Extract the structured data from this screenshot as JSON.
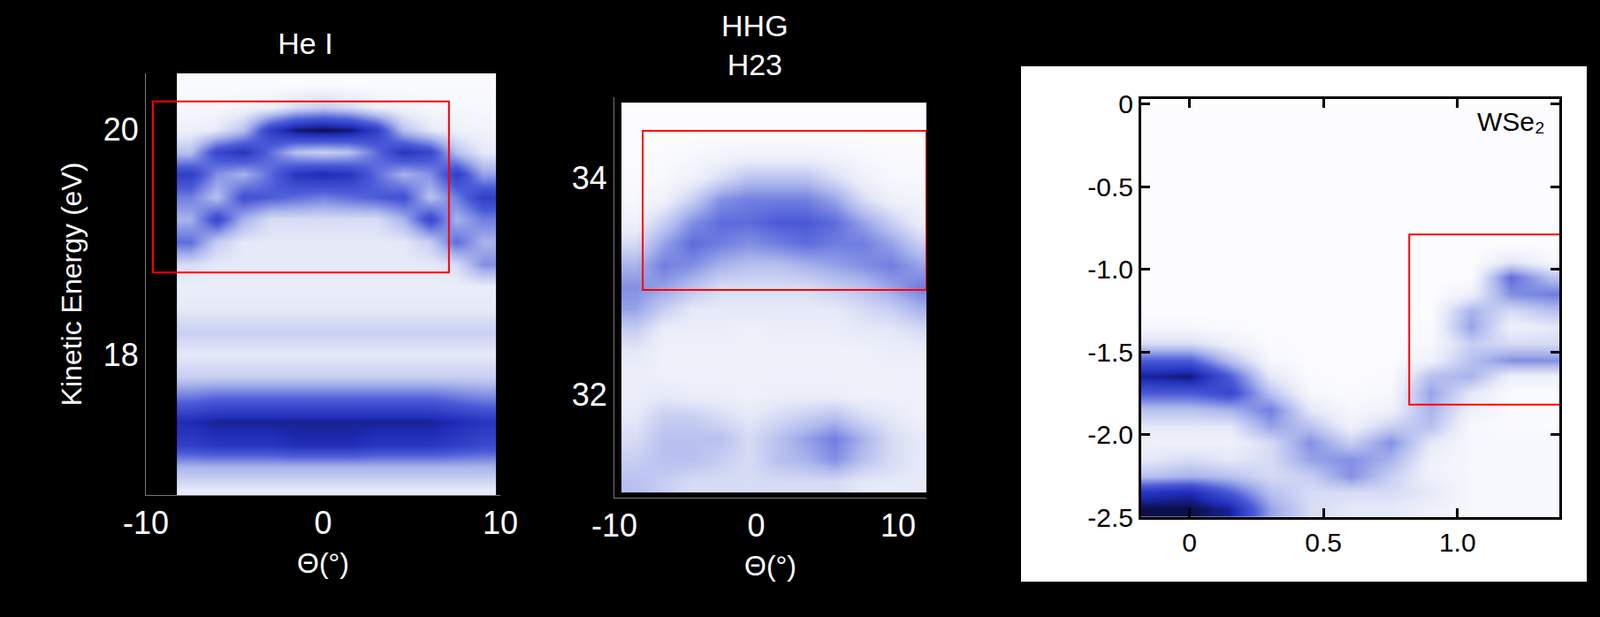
{
  "chart_data": [
    {
      "type": "heatmap",
      "title": "He I",
      "xlabel": "Θ(°)",
      "ylabel": "Kinetic Energy (eV)",
      "xlim": [
        -10,
        10
      ],
      "ylim": [
        16.75,
        20.5
      ],
      "xticks": [
        -10,
        0,
        10
      ],
      "yticks": [
        18,
        20
      ],
      "zlim": [
        0,
        1
      ],
      "x": [
        -7.5,
        -6,
        -4.5,
        -3,
        -1.5,
        0,
        1.5,
        3,
        4.5,
        6,
        7.5,
        9
      ],
      "y": [
        16.8,
        17.0,
        17.2,
        17.4,
        17.6,
        17.8,
        18.0,
        18.2,
        18.4,
        18.6,
        18.8,
        19.0,
        19.2,
        19.4,
        19.6,
        19.8,
        20.0,
        20.2,
        20.4
      ],
      "z": [
        [
          0.15,
          0.15,
          0.15,
          0.15,
          0.15,
          0.15,
          0.15,
          0.15,
          0.15,
          0.15,
          0.15,
          0.15
        ],
        [
          0.35,
          0.35,
          0.35,
          0.35,
          0.35,
          0.35,
          0.35,
          0.35,
          0.35,
          0.35,
          0.35,
          0.35
        ],
        [
          0.75,
          0.8,
          0.8,
          0.8,
          0.85,
          0.85,
          0.85,
          0.8,
          0.8,
          0.8,
          0.75,
          0.7
        ],
        [
          0.85,
          0.9,
          0.9,
          0.9,
          0.9,
          0.9,
          0.9,
          0.9,
          0.9,
          0.9,
          0.85,
          0.8
        ],
        [
          0.55,
          0.6,
          0.6,
          0.6,
          0.6,
          0.6,
          0.6,
          0.6,
          0.6,
          0.6,
          0.55,
          0.5
        ],
        [
          0.25,
          0.25,
          0.25,
          0.25,
          0.25,
          0.25,
          0.25,
          0.25,
          0.25,
          0.25,
          0.25,
          0.25
        ],
        [
          0.15,
          0.15,
          0.15,
          0.15,
          0.15,
          0.15,
          0.15,
          0.15,
          0.15,
          0.15,
          0.15,
          0.15
        ],
        [
          0.25,
          0.25,
          0.25,
          0.25,
          0.25,
          0.25,
          0.25,
          0.25,
          0.25,
          0.25,
          0.25,
          0.25
        ],
        [
          0.15,
          0.15,
          0.15,
          0.15,
          0.15,
          0.15,
          0.15,
          0.15,
          0.15,
          0.15,
          0.15,
          0.15
        ],
        [
          0.12,
          0.12,
          0.12,
          0.12,
          0.12,
          0.12,
          0.12,
          0.12,
          0.12,
          0.12,
          0.12,
          0.12
        ],
        [
          0.2,
          0.15,
          0.15,
          0.15,
          0.15,
          0.15,
          0.15,
          0.15,
          0.15,
          0.15,
          0.2,
          0.45
        ],
        [
          0.55,
          0.25,
          0.15,
          0.15,
          0.15,
          0.15,
          0.15,
          0.15,
          0.15,
          0.25,
          0.55,
          0.35
        ],
        [
          0.35,
          0.7,
          0.35,
          0.2,
          0.2,
          0.2,
          0.2,
          0.2,
          0.35,
          0.7,
          0.35,
          0.5
        ],
        [
          0.5,
          0.3,
          0.65,
          0.6,
          0.55,
          0.5,
          0.55,
          0.6,
          0.65,
          0.3,
          0.5,
          0.75
        ],
        [
          0.75,
          0.45,
          0.35,
          0.55,
          0.8,
          0.85,
          0.8,
          0.55,
          0.35,
          0.45,
          0.75,
          0.4
        ],
        [
          0.3,
          0.7,
          0.8,
          0.55,
          0.3,
          0.25,
          0.3,
          0.55,
          0.8,
          0.7,
          0.3,
          0.15
        ],
        [
          0.1,
          0.15,
          0.3,
          0.75,
          0.95,
          1.0,
          0.95,
          0.75,
          0.3,
          0.15,
          0.1,
          0.08
        ],
        [
          0.05,
          0.05,
          0.08,
          0.1,
          0.2,
          0.25,
          0.2,
          0.1,
          0.08,
          0.05,
          0.05,
          0.05
        ],
        [
          0.03,
          0.03,
          0.03,
          0.03,
          0.03,
          0.03,
          0.03,
          0.03,
          0.03,
          0.03,
          0.03,
          0.03
        ]
      ],
      "highlight": {
        "x": [
          -9.6,
          7.1
        ],
        "y": [
          18.73,
          20.25
        ],
        "color": "#ff0000"
      }
    },
    {
      "type": "heatmap",
      "title": "HHG H23",
      "xlabel": "Θ(°)",
      "xlim": [
        -10,
        12
      ],
      "ylim": [
        31.05,
        34.75
      ],
      "xticks": [
        -10,
        0,
        10
      ],
      "yticks": [
        32,
        34
      ],
      "zlim": [
        0,
        1
      ],
      "x": [
        -8.5,
        -6.5,
        -4.5,
        -2.5,
        -0.5,
        1.5,
        3.5,
        5.5,
        7.5,
        9.5,
        11.5
      ],
      "y": [
        31.2,
        31.4,
        31.6,
        31.8,
        32.0,
        32.2,
        32.4,
        32.6,
        32.8,
        33.0,
        33.2,
        33.4,
        33.6,
        33.8,
        34.0,
        34.2,
        34.4,
        34.6
      ],
      "z": [
        [
          0.3,
          0.25,
          0.2,
          0.2,
          0.2,
          0.2,
          0.2,
          0.2,
          0.15,
          0.15,
          0.15
        ],
        [
          0.25,
          0.3,
          0.3,
          0.25,
          0.2,
          0.3,
          0.35,
          0.45,
          0.3,
          0.2,
          0.15
        ],
        [
          0.2,
          0.3,
          0.3,
          0.3,
          0.2,
          0.3,
          0.4,
          0.5,
          0.35,
          0.2,
          0.15
        ],
        [
          0.15,
          0.25,
          0.25,
          0.2,
          0.15,
          0.2,
          0.25,
          0.3,
          0.2,
          0.15,
          0.1
        ],
        [
          0.12,
          0.15,
          0.12,
          0.12,
          0.1,
          0.12,
          0.12,
          0.12,
          0.1,
          0.1,
          0.1
        ],
        [
          0.12,
          0.1,
          0.1,
          0.1,
          0.1,
          0.1,
          0.1,
          0.1,
          0.1,
          0.1,
          0.1
        ],
        [
          0.15,
          0.1,
          0.1,
          0.1,
          0.1,
          0.1,
          0.1,
          0.1,
          0.1,
          0.12,
          0.12
        ],
        [
          0.25,
          0.12,
          0.12,
          0.12,
          0.1,
          0.12,
          0.12,
          0.12,
          0.15,
          0.15,
          0.2
        ],
        [
          0.4,
          0.25,
          0.15,
          0.15,
          0.15,
          0.15,
          0.15,
          0.15,
          0.2,
          0.25,
          0.35
        ],
        [
          0.45,
          0.4,
          0.3,
          0.2,
          0.2,
          0.2,
          0.2,
          0.25,
          0.3,
          0.4,
          0.5
        ],
        [
          0.35,
          0.5,
          0.45,
          0.35,
          0.3,
          0.3,
          0.35,
          0.4,
          0.45,
          0.5,
          0.4
        ],
        [
          0.2,
          0.4,
          0.55,
          0.5,
          0.45,
          0.5,
          0.55,
          0.5,
          0.5,
          0.4,
          0.25
        ],
        [
          0.1,
          0.25,
          0.45,
          0.55,
          0.55,
          0.6,
          0.6,
          0.55,
          0.4,
          0.25,
          0.12
        ],
        [
          0.05,
          0.1,
          0.25,
          0.45,
          0.5,
          0.5,
          0.5,
          0.4,
          0.2,
          0.1,
          0.08
        ],
        [
          0.03,
          0.05,
          0.1,
          0.2,
          0.3,
          0.3,
          0.3,
          0.2,
          0.1,
          0.05,
          0.05
        ],
        [
          0.02,
          0.03,
          0.05,
          0.08,
          0.1,
          0.1,
          0.1,
          0.08,
          0.05,
          0.03,
          0.03
        ],
        [
          0.02,
          0.02,
          0.02,
          0.02,
          0.02,
          0.02,
          0.02,
          0.02,
          0.02,
          0.02,
          0.02
        ],
        [
          0.02,
          0.02,
          0.02,
          0.02,
          0.02,
          0.02,
          0.02,
          0.02,
          0.02,
          0.02,
          0.02
        ]
      ],
      "highlight": {
        "x": [
          -8,
          12
        ],
        "y": [
          32.97,
          34.44
        ],
        "color": "#ff0000"
      }
    },
    {
      "type": "heatmap",
      "xlim": [
        -0.18,
        1.38
      ],
      "ylim": [
        -2.5,
        0.03
      ],
      "xticks": [
        0,
        0.5,
        {
          "value": 1,
          "label": "1.0"
        }
      ],
      "yticks": [
        0,
        -0.5,
        {
          "value": -1,
          "label": "-1.0"
        },
        -1.5,
        {
          "value": -2,
          "label": "-2.0"
        },
        -2.5
      ],
      "zlim": [
        0,
        1
      ],
      "annotations": [
        {
          "text": "WSe₂"
        }
      ],
      "x": [
        -0.15,
        0,
        0.15,
        0.3,
        0.45,
        0.6,
        0.75,
        0.9,
        1.05,
        1.2,
        1.35
      ],
      "y": [
        -2.45,
        -2.35,
        -2.25,
        -2.15,
        -2.05,
        -1.95,
        -1.85,
        -1.75,
        -1.65,
        -1.55,
        -1.45,
        -1.35,
        -1.25,
        -1.15,
        -1.05,
        -0.95,
        -0.85,
        -0.75,
        -0.65,
        -0.55,
        -0.45,
        -0.35,
        -0.25,
        -0.15,
        -0.05
      ],
      "z": [
        [
          1.0,
          1.0,
          0.9,
          0.4,
          0.2,
          0.15,
          0.15,
          0.1,
          0.05,
          0.05,
          0.05
        ],
        [
          0.8,
          0.85,
          0.6,
          0.3,
          0.2,
          0.2,
          0.2,
          0.15,
          0.05,
          0.05,
          0.05
        ],
        [
          0.3,
          0.35,
          0.3,
          0.2,
          0.25,
          0.45,
          0.25,
          0.1,
          0.05,
          0.05,
          0.05
        ],
        [
          0.15,
          0.2,
          0.15,
          0.2,
          0.4,
          0.45,
          0.35,
          0.1,
          0.05,
          0.05,
          0.05
        ],
        [
          0.1,
          0.1,
          0.1,
          0.2,
          0.45,
          0.25,
          0.45,
          0.15,
          0.05,
          0.05,
          0.05
        ],
        [
          0.15,
          0.15,
          0.15,
          0.4,
          0.3,
          0.1,
          0.25,
          0.3,
          0.05,
          0.03,
          0.03
        ],
        [
          0.3,
          0.3,
          0.35,
          0.5,
          0.15,
          0.05,
          0.1,
          0.35,
          0.1,
          0.03,
          0.03
        ],
        [
          0.6,
          0.6,
          0.7,
          0.3,
          0.05,
          0.03,
          0.05,
          0.4,
          0.15,
          0.03,
          0.03
        ],
        [
          0.9,
          0.95,
          0.6,
          0.15,
          0.03,
          0.02,
          0.03,
          0.3,
          0.35,
          0.1,
          0.1
        ],
        [
          0.6,
          0.6,
          0.3,
          0.05,
          0.02,
          0.02,
          0.02,
          0.1,
          0.3,
          0.45,
          0.45
        ],
        [
          0.2,
          0.2,
          0.1,
          0.03,
          0.02,
          0.02,
          0.02,
          0.05,
          0.25,
          0.2,
          0.2
        ],
        [
          0.05,
          0.05,
          0.03,
          0.02,
          0.02,
          0.02,
          0.02,
          0.03,
          0.4,
          0.1,
          0.15
        ],
        [
          0.02,
          0.02,
          0.02,
          0.02,
          0.02,
          0.02,
          0.02,
          0.02,
          0.35,
          0.2,
          0.3
        ],
        [
          0.02,
          0.02,
          0.02,
          0.02,
          0.02,
          0.02,
          0.02,
          0.02,
          0.1,
          0.45,
          0.5
        ],
        [
          0.02,
          0.02,
          0.02,
          0.02,
          0.02,
          0.02,
          0.02,
          0.02,
          0.02,
          0.55,
          0.3
        ],
        [
          0.02,
          0.02,
          0.02,
          0.02,
          0.02,
          0.02,
          0.02,
          0.02,
          0.02,
          0.15,
          0.05
        ],
        [
          0.02,
          0.02,
          0.02,
          0.02,
          0.02,
          0.02,
          0.02,
          0.02,
          0.02,
          0.02,
          0.02
        ],
        [
          0.02,
          0.02,
          0.02,
          0.02,
          0.02,
          0.02,
          0.02,
          0.02,
          0.02,
          0.02,
          0.02
        ],
        [
          0.02,
          0.02,
          0.02,
          0.02,
          0.02,
          0.02,
          0.02,
          0.02,
          0.02,
          0.02,
          0.02
        ],
        [
          0.02,
          0.02,
          0.02,
          0.02,
          0.02,
          0.02,
          0.02,
          0.02,
          0.02,
          0.02,
          0.02
        ],
        [
          0.02,
          0.02,
          0.02,
          0.02,
          0.02,
          0.02,
          0.02,
          0.02,
          0.02,
          0.02,
          0.02
        ],
        [
          0.02,
          0.02,
          0.02,
          0.02,
          0.02,
          0.02,
          0.02,
          0.02,
          0.02,
          0.02,
          0.02
        ],
        [
          0.02,
          0.02,
          0.02,
          0.02,
          0.02,
          0.02,
          0.02,
          0.02,
          0.02,
          0.02,
          0.02
        ],
        [
          0.02,
          0.02,
          0.02,
          0.02,
          0.02,
          0.02,
          0.02,
          0.02,
          0.02,
          0.02,
          0.02
        ],
        [
          0.02,
          0.02,
          0.02,
          0.02,
          0.02,
          0.02,
          0.02,
          0.02,
          0.02,
          0.02,
          0.02
        ]
      ],
      "highlight": {
        "x": [
          0.82,
          1.54
        ],
        "y": [
          -1.82,
          -0.79
        ],
        "color": "#ff0000"
      }
    }
  ]
}
